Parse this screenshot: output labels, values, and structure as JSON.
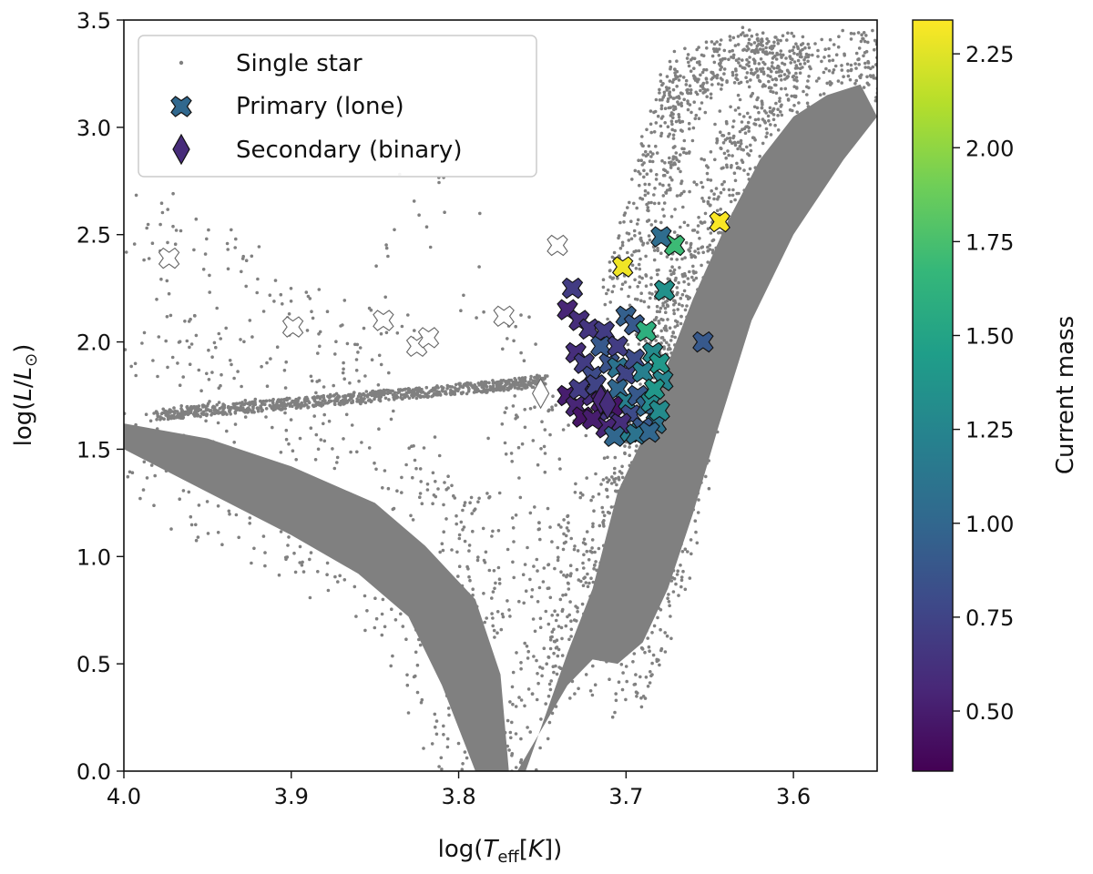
{
  "chart_data": {
    "type": "scatter",
    "title": "",
    "xlabel": "log(T_eff[K])",
    "xlabel_parts": {
      "pre": "log(",
      "T": "T",
      "sub": "eff",
      "post1": "[",
      "K": "K",
      "post2": "])"
    },
    "ylabel": "log(L/L⊙)",
    "ylabel_parts": {
      "pre": "log(",
      "L1": "L",
      "slash": "/",
      "L2": "L",
      "sub": "⊙",
      "post": ")"
    },
    "xlim": [
      4.0,
      3.55
    ],
    "ylim": [
      0.0,
      3.5
    ],
    "x_ticks": [
      "4.0",
      "3.9",
      "3.8",
      "3.7",
      "3.6"
    ],
    "x_tick_values": [
      4.0,
      3.9,
      3.8,
      3.7,
      3.6
    ],
    "y_ticks": [
      "0.0",
      "0.5",
      "1.0",
      "1.5",
      "2.0",
      "2.5",
      "3.0",
      "3.5"
    ],
    "y_tick_values": [
      0.0,
      0.5,
      1.0,
      1.5,
      2.0,
      2.5,
      3.0,
      3.5
    ],
    "grid": false,
    "legend": {
      "position": "top-left",
      "entries": [
        {
          "label": "Single star",
          "marker": "dot",
          "color": "#808080"
        },
        {
          "label": "Primary (lone)",
          "marker": "X",
          "color": "#31688e"
        },
        {
          "label": "Secondary (binary)",
          "marker": "diamond",
          "color": "#472c7a"
        }
      ]
    },
    "colorbar": {
      "label": "Current mass",
      "colormap": "viridis",
      "range": [
        0.34,
        2.34
      ],
      "ticks": [
        "0.50",
        "0.75",
        "1.00",
        "1.25",
        "1.50",
        "1.75",
        "2.00",
        "2.25"
      ],
      "tick_values": [
        0.5,
        0.75,
        1.0,
        1.25,
        1.5,
        1.75,
        2.0,
        2.25
      ],
      "stops": [
        "#440154",
        "#482878",
        "#3e4989",
        "#31688e",
        "#26828e",
        "#1f9e89",
        "#35b779",
        "#6ece58",
        "#b5de2b",
        "#fde725"
      ]
    },
    "series": [
      {
        "name": "Single star",
        "marker": "dot",
        "color": "#808080",
        "regions": [
          {
            "name": "main-sequence",
            "points": [
              [
                4.0,
                1.52
              ],
              [
                3.98,
                1.42
              ],
              [
                3.95,
                1.3
              ],
              [
                3.92,
                1.18
              ],
              [
                3.89,
                1.05
              ],
              [
                3.86,
                0.92
              ],
              [
                3.84,
                0.8
              ],
              [
                3.82,
                0.6
              ],
              [
                3.81,
                0.35
              ],
              [
                3.8,
                0.1
              ],
              [
                3.79,
                0.0
              ],
              [
                3.76,
                0.0
              ],
              [
                3.755,
                0.25
              ],
              [
                3.75,
                0.5
              ],
              [
                3.74,
                0.75
              ],
              [
                3.73,
                0.95
              ],
              [
                3.72,
                1.2
              ],
              [
                3.71,
                1.5
              ],
              [
                3.7,
                1.55
              ],
              [
                3.69,
                1.45
              ],
              [
                3.7,
                1.2
              ],
              [
                3.71,
                0.9
              ],
              [
                3.72,
                0.7
              ],
              [
                3.73,
                0.55
              ],
              [
                3.74,
                0.5
              ],
              [
                3.76,
                0.55
              ],
              [
                3.77,
                0.75
              ],
              [
                3.78,
                0.9
              ],
              [
                3.79,
                1.05
              ],
              [
                3.8,
                1.15
              ],
              [
                3.82,
                1.32
              ],
              [
                3.85,
                1.5
              ],
              [
                3.88,
                1.62
              ],
              [
                3.91,
                1.72
              ],
              [
                3.94,
                1.82
              ],
              [
                3.97,
                1.95
              ],
              [
                4.0,
                2.1
              ]
            ]
          },
          {
            "name": "red-giant-branch",
            "points": [
              [
                3.72,
                0.7
              ],
              [
                3.71,
                1.0
              ],
              [
                3.7,
                1.4
              ],
              [
                3.69,
                1.7
              ],
              [
                3.68,
                2.0
              ],
              [
                3.67,
                2.3
              ],
              [
                3.66,
                2.6
              ],
              [
                3.64,
                2.9
              ],
              [
                3.62,
                3.1
              ],
              [
                3.6,
                3.2
              ],
              [
                3.58,
                3.3
              ],
              [
                3.56,
                3.35
              ],
              [
                3.55,
                3.3
              ],
              [
                3.57,
                3.1
              ],
              [
                3.59,
                2.9
              ],
              [
                3.61,
                2.6
              ],
              [
                3.63,
                2.3
              ],
              [
                3.65,
                1.9
              ],
              [
                3.66,
                1.5
              ],
              [
                3.67,
                1.1
              ],
              [
                3.68,
                0.8
              ],
              [
                3.69,
                0.5
              ],
              [
                3.7,
                0.35
              ]
            ]
          },
          {
            "name": "asymptotic-branch",
            "points": [
              [
                3.7,
                2.2
              ],
              [
                3.69,
                2.5
              ],
              [
                3.68,
                2.8
              ],
              [
                3.67,
                3.1
              ],
              [
                3.66,
                3.25
              ],
              [
                3.64,
                3.3
              ],
              [
                3.62,
                3.35
              ],
              [
                3.6,
                3.3
              ],
              [
                3.63,
                2.9
              ],
              [
                3.65,
                2.5
              ],
              [
                3.67,
                2.2
              ],
              [
                3.69,
                2.0
              ]
            ]
          },
          {
            "name": "horizontal-branch",
            "points": [
              [
                3.98,
                1.66
              ],
              [
                3.95,
                1.68
              ],
              [
                3.92,
                1.7
              ],
              [
                3.89,
                1.72
              ],
              [
                3.86,
                1.74
              ],
              [
                3.83,
                1.76
              ],
              [
                3.8,
                1.78
              ],
              [
                3.77,
                1.8
              ],
              [
                3.75,
                1.82
              ]
            ]
          },
          {
            "name": "hot-scatter",
            "points": [
              [
                3.99,
                2.58
              ],
              [
                3.97,
                2.4
              ],
              [
                3.95,
                2.35
              ],
              [
                3.93,
                2.3
              ],
              [
                3.91,
                2.2
              ],
              [
                3.89,
                2.1
              ],
              [
                3.87,
                2.0
              ],
              [
                3.85,
                1.9
              ],
              [
                3.82,
                2.74
              ],
              [
                3.77,
                2.0
              ],
              [
                3.76,
                1.7
              ],
              [
                3.75,
                1.6
              ],
              [
                3.77,
                1.4
              ],
              [
                3.76,
                1.2
              ],
              [
                3.75,
                1.0
              ],
              [
                3.745,
                0.9
              ]
            ]
          }
        ]
      },
      {
        "name": "Primary (lone)",
        "marker": "X",
        "points": [
          [
            3.973,
            2.39,
            null
          ],
          [
            3.899,
            2.07,
            null
          ],
          [
            3.845,
            2.1,
            null
          ],
          [
            3.825,
            1.98,
            null
          ],
          [
            3.818,
            2.02,
            null
          ],
          [
            3.773,
            2.12,
            null
          ],
          [
            3.741,
            2.45,
            null
          ],
          [
            3.644,
            2.56,
            2.33
          ],
          [
            3.702,
            2.35,
            2.3
          ],
          [
            3.671,
            2.45,
            1.7
          ],
          [
            3.679,
            2.49,
            1.05
          ],
          [
            3.677,
            2.24,
            1.35
          ],
          [
            3.654,
            2.0,
            0.9
          ],
          [
            3.732,
            2.25,
            0.7
          ],
          [
            3.735,
            2.15,
            0.55
          ],
          [
            3.728,
            2.1,
            0.6
          ],
          [
            3.722,
            2.06,
            0.65
          ],
          [
            3.713,
            2.05,
            0.7
          ],
          [
            3.7,
            2.12,
            0.95
          ],
          [
            3.695,
            2.08,
            0.9
          ],
          [
            3.688,
            2.05,
            1.6
          ],
          [
            3.684,
            1.95,
            1.3
          ],
          [
            3.68,
            1.9,
            1.4
          ],
          [
            3.678,
            1.82,
            1.25
          ],
          [
            3.73,
            1.95,
            0.6
          ],
          [
            3.725,
            1.9,
            0.7
          ],
          [
            3.72,
            1.84,
            0.8
          ],
          [
            3.71,
            1.9,
            0.85
          ],
          [
            3.705,
            1.88,
            1.1
          ],
          [
            3.7,
            1.85,
            0.75
          ],
          [
            3.695,
            1.92,
            0.8
          ],
          [
            3.69,
            1.86,
            1.2
          ],
          [
            3.715,
            1.98,
            0.9
          ],
          [
            3.705,
            1.98,
            0.7
          ],
          [
            3.735,
            1.75,
            0.5
          ],
          [
            3.73,
            1.7,
            0.55
          ],
          [
            3.726,
            1.65,
            0.45
          ],
          [
            3.72,
            1.75,
            0.6
          ],
          [
            3.715,
            1.72,
            0.5
          ],
          [
            3.71,
            1.68,
            0.65
          ],
          [
            3.705,
            1.78,
            1.0
          ],
          [
            3.7,
            1.72,
            1.2
          ],
          [
            3.697,
            1.66,
            0.8
          ],
          [
            3.693,
            1.75,
            0.9
          ],
          [
            3.688,
            1.7,
            1.0
          ],
          [
            3.685,
            1.72,
            1.3
          ],
          [
            3.682,
            1.62,
            1.1
          ],
          [
            3.698,
            1.58,
            1.2
          ],
          [
            3.69,
            1.6,
            0.9
          ],
          [
            3.703,
            1.62,
            0.6
          ],
          [
            3.712,
            1.6,
            0.55
          ],
          [
            3.72,
            1.64,
            0.5
          ],
          [
            3.728,
            1.78,
            0.7
          ],
          [
            3.707,
            1.56,
            1.0
          ],
          [
            3.694,
            1.57,
            1.1
          ],
          [
            3.686,
            1.58,
            1.0
          ],
          [
            3.68,
            1.68,
            1.3
          ],
          [
            3.683,
            1.78,
            1.4
          ],
          [
            3.718,
            1.8,
            0.75
          ],
          [
            3.708,
            1.7,
            0.45
          ]
        ]
      },
      {
        "name": "Secondary (binary)",
        "marker": "diamond",
        "points": [
          [
            3.751,
            1.76,
            null
          ],
          [
            3.715,
            1.73,
            0.55
          ],
          [
            3.711,
            1.71,
            0.6
          ]
        ]
      }
    ]
  }
}
